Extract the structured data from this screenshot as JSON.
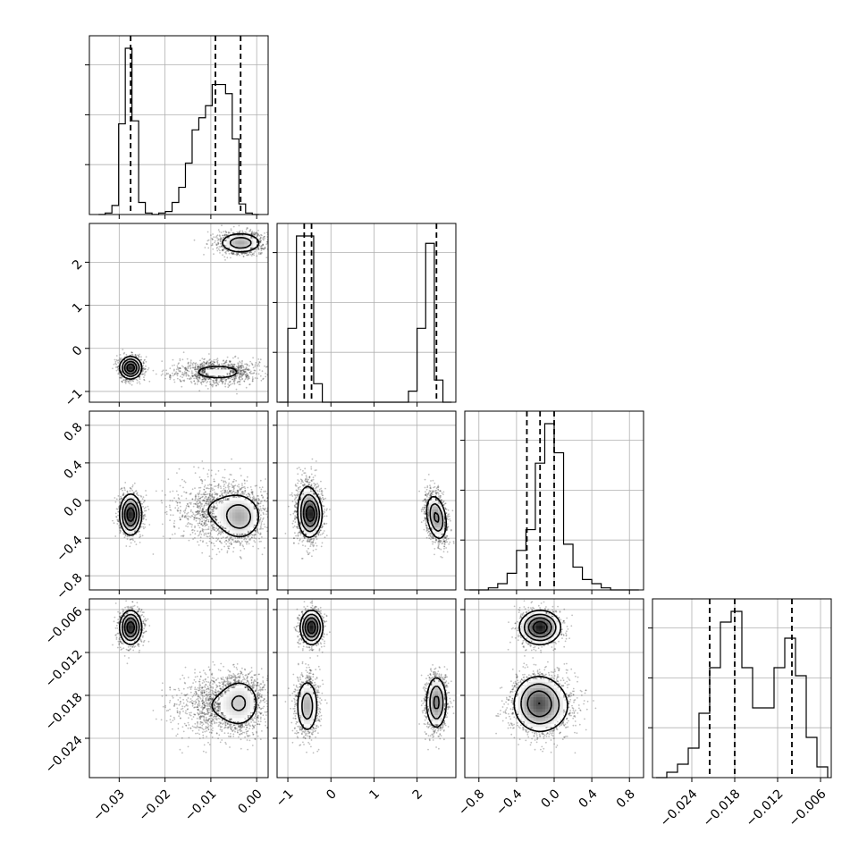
{
  "chart_data": {
    "type": "corner",
    "params": [
      {
        "ticks": [
          -0.03,
          -0.02,
          -0.01,
          0.0
        ],
        "tick_labels": [
          "−0.03",
          "−0.02",
          "−0.01",
          "0.00"
        ],
        "range": [
          -0.0365,
          0.0025
        ]
      },
      {
        "ticks": [
          -1,
          0,
          1,
          2
        ],
        "tick_labels": [
          "−1",
          "0",
          "1",
          "2"
        ],
        "range": [
          -1.25,
          2.9
        ]
      },
      {
        "ticks": [
          -0.8,
          -0.4,
          0.0,
          0.4,
          0.8
        ],
        "tick_labels": [
          "−0.8",
          "−0.4",
          "0.0",
          "0.4",
          "0.8"
        ],
        "range": [
          -0.95,
          0.95
        ]
      },
      {
        "ticks": [
          -0.024,
          -0.018,
          -0.012,
          -0.006
        ],
        "tick_labels": [
          "−0.024",
          "−0.018",
          "−0.012",
          "−0.006"
        ],
        "range": [
          -0.0295,
          -0.0045
        ]
      }
    ],
    "modes": [
      {
        "weight": 0.35,
        "mean": [
          -0.0275,
          -0.45,
          -0.15,
          -0.0085
        ],
        "sd": [
          0.0012,
          0.13,
          0.11,
          0.0012
        ]
      },
      {
        "weight": 0.3,
        "mean": [
          -0.0085,
          -0.55,
          -0.1,
          -0.0195
        ],
        "sd": [
          0.0045,
          0.14,
          0.17,
          0.0021
        ]
      },
      {
        "weight": 0.35,
        "mean": [
          -0.0035,
          2.45,
          -0.18,
          -0.019
        ],
        "sd": [
          0.0025,
          0.13,
          0.13,
          0.002
        ]
      }
    ],
    "quantiles": [
      [
        -0.0275,
        -0.009,
        -0.0035
      ],
      [
        -0.62,
        -0.45,
        2.45
      ],
      [
        -0.29,
        -0.15,
        0.0
      ],
      [
        -0.0215,
        -0.018,
        -0.01
      ]
    ],
    "histograms": [
      {
        "edges_range": [
          -0.0345,
          0.0005
        ],
        "counts": [
          0,
          1,
          6,
          60,
          110,
          62,
          8,
          1,
          0,
          1,
          2,
          8,
          18,
          34,
          56,
          64,
          72,
          86,
          86,
          80,
          50,
          7,
          1,
          0
        ]
      },
      {
        "edges_range": [
          -1.2,
          2.8
        ],
        "counts": [
          0,
          20,
          45,
          45,
          5,
          0,
          0,
          0,
          0,
          0,
          0,
          0,
          0,
          0,
          0,
          3,
          20,
          43,
          6,
          0
        ]
      },
      {
        "edges_range": [
          -0.9,
          0.9
        ],
        "counts": [
          0,
          0,
          1,
          3,
          8,
          19,
          29,
          61,
          80,
          66,
          22,
          11,
          5,
          3,
          1,
          0,
          0,
          0
        ]
      },
      {
        "edges_range": [
          -0.029,
          -0.005
        ],
        "counts": [
          0,
          2,
          5,
          11,
          24,
          41,
          58,
          62,
          41,
          26,
          26,
          41,
          52,
          38,
          15,
          4
        ]
      }
    ],
    "grid": true
  }
}
